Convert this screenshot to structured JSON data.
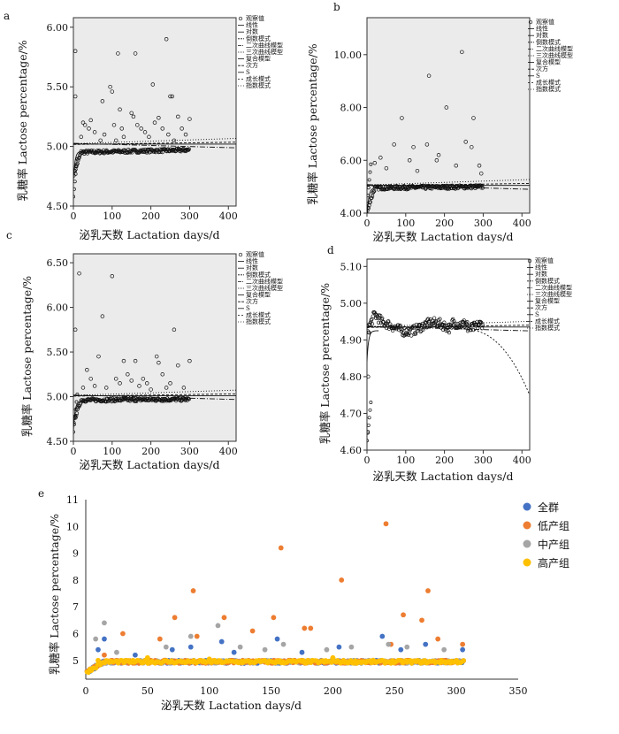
{
  "chart_data": [
    {
      "panel": "a",
      "type": "scatter",
      "xlabel": "泌乳天数  Lactation days/d",
      "ylabel": "乳糖率  Lactose percentage/%",
      "xlim": [
        0,
        420
      ],
      "ylim": [
        4.5,
        6.08
      ],
      "xticks": [
        0,
        100,
        200,
        300,
        400
      ],
      "yticks": [
        4.5,
        5.0,
        5.5,
        6.0
      ],
      "ytick_labels": [
        "4.50",
        "5.00",
        "5.50",
        "6.00"
      ],
      "background": "#ebebeb",
      "legend": [
        "观察值",
        "线性",
        "对数",
        "倒数模式",
        "二次曲线模型",
        "三次曲线模型",
        "复合模型",
        "次方",
        "S",
        "成长模式",
        "指数模式"
      ],
      "outliers": [
        [
          5,
          5.8
        ],
        [
          5,
          5.42
        ],
        [
          20,
          5.08
        ],
        [
          25,
          5.2
        ],
        [
          30,
          5.18
        ],
        [
          40,
          5.15
        ],
        [
          45,
          5.22
        ],
        [
          55,
          5.12
        ],
        [
          70,
          5.05
        ],
        [
          75,
          5.38
        ],
        [
          80,
          5.1
        ],
        [
          95,
          5.5
        ],
        [
          100,
          5.46
        ],
        [
          105,
          5.18
        ],
        [
          110,
          5.05
        ],
        [
          115,
          5.78
        ],
        [
          120,
          5.31
        ],
        [
          125,
          5.15
        ],
        [
          130,
          5.08
        ],
        [
          150,
          5.28
        ],
        [
          155,
          5.25
        ],
        [
          160,
          5.78
        ],
        [
          165,
          5.18
        ],
        [
          175,
          5.15
        ],
        [
          185,
          5.12
        ],
        [
          195,
          5.08
        ],
        [
          205,
          5.52
        ],
        [
          210,
          5.2
        ],
        [
          220,
          5.24
        ],
        [
          230,
          5.15
        ],
        [
          240,
          5.9
        ],
        [
          245,
          5.1
        ],
        [
          250,
          5.42
        ],
        [
          255,
          5.42
        ],
        [
          260,
          5.05
        ],
        [
          270,
          5.25
        ],
        [
          280,
          5.15
        ],
        [
          290,
          5.1
        ],
        [
          300,
          5.23
        ]
      ],
      "trend": {
        "start": 4.95,
        "end": 4.97
      },
      "band": {
        "center": 5.02,
        "low": 4.96
      }
    },
    {
      "panel": "b",
      "type": "scatter",
      "xlabel": "泌乳天数  Lactation days/d",
      "ylabel": "乳糖率  Lactose percentage/%",
      "xlim": [
        0,
        420
      ],
      "ylim": [
        4.0,
        11.4
      ],
      "xticks": [
        0,
        100,
        200,
        300,
        400
      ],
      "yticks": [
        4.0,
        6.0,
        8.0,
        10.0
      ],
      "ytick_labels": [
        "4.00",
        "6.00",
        "8.00",
        "10.00"
      ],
      "background": "#ebebeb",
      "legend": [
        "观察值",
        "线性",
        "对数",
        "倒数模式",
        "二次曲线模型",
        "三次曲线模型",
        "复合模型",
        "次方",
        "S",
        "成长模式",
        "指数模式"
      ],
      "outliers": [
        [
          20,
          5.9
        ],
        [
          35,
          6.1
        ],
        [
          50,
          5.7
        ],
        [
          70,
          6.6
        ],
        [
          90,
          7.6
        ],
        [
          110,
          6.0
        ],
        [
          120,
          6.5
        ],
        [
          130,
          5.6
        ],
        [
          155,
          6.6
        ],
        [
          160,
          9.2
        ],
        [
          180,
          6.0
        ],
        [
          185,
          6.2
        ],
        [
          205,
          8.0
        ],
        [
          230,
          5.8
        ],
        [
          245,
          10.1
        ],
        [
          255,
          6.7
        ],
        [
          270,
          6.5
        ],
        [
          275,
          7.6
        ],
        [
          290,
          5.8
        ],
        [
          295,
          5.5
        ]
      ],
      "trend": {
        "start": 4.95,
        "end": 5.0
      },
      "band": {
        "center": 5.05,
        "low": 4.95
      }
    },
    {
      "panel": "c",
      "type": "scatter",
      "xlabel": "泌乳天数  Lactation days/d",
      "ylabel": "乳糖率  Lactose percentage/%",
      "xlim": [
        0,
        420
      ],
      "ylim": [
        4.5,
        6.6
      ],
      "xticks": [
        0,
        100,
        200,
        300,
        400
      ],
      "yticks": [
        4.5,
        5.0,
        5.5,
        6.0,
        6.5
      ],
      "ytick_labels": [
        "4.50",
        "5.00",
        "5.50",
        "6.00",
        "6.50"
      ],
      "background": "#ebebeb",
      "legend": [
        "观察值",
        "线性",
        "对数",
        "倒数模式",
        "二次曲线模型",
        "三次曲线模型",
        "复合模型",
        "次方",
        "S",
        "成长模式",
        "指数模式"
      ],
      "outliers": [
        [
          5,
          5.75
        ],
        [
          15,
          6.38
        ],
        [
          25,
          5.1
        ],
        [
          35,
          5.3
        ],
        [
          45,
          5.2
        ],
        [
          55,
          5.12
        ],
        [
          65,
          5.45
        ],
        [
          75,
          5.9
        ],
        [
          85,
          5.1
        ],
        [
          100,
          6.35
        ],
        [
          110,
          5.2
        ],
        [
          120,
          5.15
        ],
        [
          130,
          5.4
        ],
        [
          140,
          5.25
        ],
        [
          150,
          5.18
        ],
        [
          160,
          5.4
        ],
        [
          170,
          5.12
        ],
        [
          180,
          5.2
        ],
        [
          190,
          5.15
        ],
        [
          200,
          5.08
        ],
        [
          215,
          5.45
        ],
        [
          220,
          5.38
        ],
        [
          230,
          5.25
        ],
        [
          240,
          5.1
        ],
        [
          250,
          5.15
        ],
        [
          260,
          5.75
        ],
        [
          270,
          5.35
        ],
        [
          285,
          5.1
        ],
        [
          300,
          5.4
        ]
      ],
      "trend": {
        "start": 4.96,
        "end": 4.97
      },
      "band": {
        "center": 5.01,
        "low": 4.95
      }
    },
    {
      "panel": "d",
      "type": "scatter",
      "xlabel": "泌乳天数  Lactation days/d",
      "ylabel": "乳糖率  Lactose percentage/%",
      "xlim": [
        0,
        420
      ],
      "ylim": [
        4.6,
        5.12
      ],
      "xticks": [
        0,
        100,
        200,
        300,
        400
      ],
      "yticks": [
        4.6,
        4.7,
        4.8,
        4.9,
        5.0,
        5.1
      ],
      "ytick_labels": [
        "4.60",
        "4.70",
        "4.80",
        "4.90",
        "5.00",
        "5.10"
      ],
      "background": "#ffffff",
      "legend": [
        "观察值",
        "线性",
        "对数",
        "倒数模式",
        "二次曲线模型",
        "三次曲线模型",
        "复合模型",
        "次方",
        "S",
        "成长模式",
        "指数模式"
      ],
      "outliers": [
        [
          2,
          4.65
        ],
        [
          3,
          4.8
        ],
        [
          5,
          4.92
        ]
      ],
      "trend": {
        "start": 5.0,
        "end": 4.92
      },
      "band": {
        "center": 4.935,
        "low": 4.925
      }
    },
    {
      "panel": "e",
      "type": "scatter",
      "xlabel": "泌乳天数  Lactation days/d",
      "ylabel": "乳糖率  Lactose percentage/%",
      "xlim": [
        0,
        350
      ],
      "ylim": [
        4.0,
        11.0
      ],
      "xticks": [
        0,
        50,
        100,
        150,
        200,
        250,
        300,
        350
      ],
      "yticks": [
        5,
        6,
        7,
        8,
        9,
        10,
        11
      ],
      "ytick_labels": [
        "5",
        "6",
        "7",
        "8",
        "9",
        "10",
        "11"
      ],
      "legend": "right",
      "series": [
        {
          "name": "全群",
          "color": "#4472c4",
          "outliers": [
            [
              10,
              5.4
            ],
            [
              15,
              5.8
            ],
            [
              40,
              5.2
            ],
            [
              70,
              5.4
            ],
            [
              85,
              5.5
            ],
            [
              110,
              5.7
            ],
            [
              120,
              5.3
            ],
            [
              155,
              5.8
            ],
            [
              175,
              5.3
            ],
            [
              205,
              5.5
            ],
            [
              240,
              5.9
            ],
            [
              255,
              5.4
            ],
            [
              275,
              5.6
            ],
            [
              305,
              5.4
            ]
          ]
        },
        {
          "name": "低产组",
          "color": "#ed7d31",
          "outliers": [
            [
              15,
              5.2
            ],
            [
              30,
              6.0
            ],
            [
              60,
              5.8
            ],
            [
              72,
              6.6
            ],
            [
              87,
              7.6
            ],
            [
              90,
              5.9
            ],
            [
              112,
              6.6
            ],
            [
              135,
              6.1
            ],
            [
              152,
              6.6
            ],
            [
              158,
              9.2
            ],
            [
              177,
              6.2
            ],
            [
              182,
              6.2
            ],
            [
              207,
              8.0
            ],
            [
              243,
              10.1
            ],
            [
              247,
              5.6
            ],
            [
              257,
              6.7
            ],
            [
              272,
              6.5
            ],
            [
              277,
              7.6
            ],
            [
              285,
              5.8
            ],
            [
              305,
              5.6
            ]
          ]
        },
        {
          "name": "中产组",
          "color": "#a5a5a5",
          "outliers": [
            [
              8,
              5.8
            ],
            [
              15,
              6.4
            ],
            [
              25,
              5.3
            ],
            [
              65,
              5.5
            ],
            [
              85,
              5.9
            ],
            [
              107,
              6.3
            ],
            [
              125,
              5.5
            ],
            [
              145,
              5.4
            ],
            [
              160,
              5.6
            ],
            [
              195,
              5.4
            ],
            [
              215,
              5.5
            ],
            [
              245,
              5.6
            ],
            [
              260,
              5.5
            ],
            [
              290,
              5.4
            ]
          ]
        },
        {
          "name": "高产组",
          "color": "#ffc000",
          "outliers": [
            [
              10,
              5.0
            ],
            [
              50,
              5.1
            ],
            [
              100,
              5.05
            ],
            [
              200,
              5.1
            ],
            [
              300,
              5.0
            ]
          ]
        }
      ]
    }
  ]
}
